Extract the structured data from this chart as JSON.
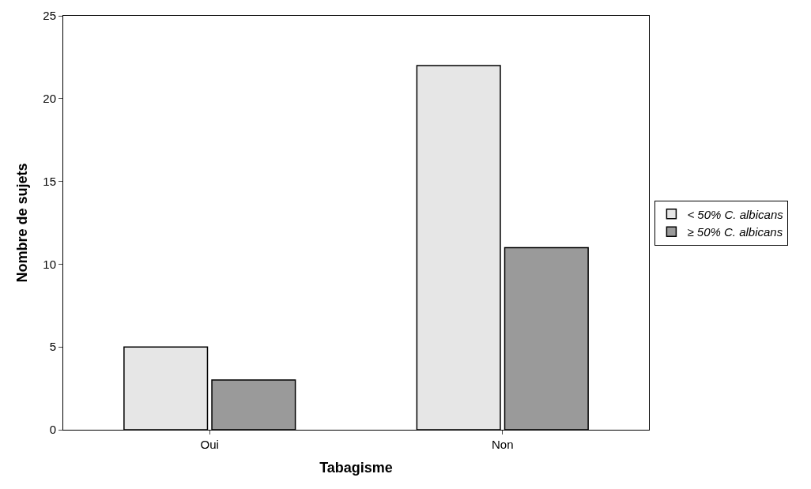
{
  "chart_data": {
    "type": "bar",
    "xlabel": "Tabagisme",
    "ylabel": "Nombre de sujets",
    "categories": [
      "Oui",
      "Non"
    ],
    "series": [
      {
        "name": "< 50% C. albicans",
        "color": "#e6e6e6",
        "values": [
          5,
          22
        ]
      },
      {
        "name": "≥ 50% C. albicans",
        "color": "#9a9a9a",
        "values": [
          3,
          11
        ]
      }
    ],
    "ylim": [
      0,
      25
    ],
    "yticks": [
      0,
      5,
      10,
      15,
      20,
      25
    ],
    "grid": false,
    "legend": "right"
  }
}
